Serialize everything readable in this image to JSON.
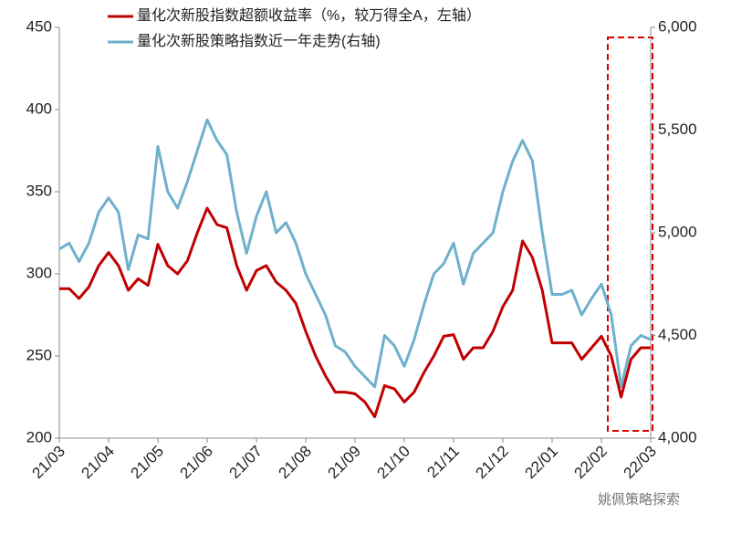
{
  "chart_data": {
    "type": "line",
    "categories": [
      "21/03",
      null,
      null,
      null,
      null,
      "21/04",
      null,
      null,
      null,
      null,
      "21/05",
      null,
      null,
      null,
      null,
      "21/06",
      null,
      null,
      null,
      null,
      "21/07",
      null,
      null,
      null,
      null,
      "21/08",
      null,
      null,
      null,
      null,
      "21/09",
      null,
      null,
      null,
      null,
      "21/10",
      null,
      null,
      null,
      null,
      "21/11",
      null,
      null,
      null,
      null,
      "21/12",
      null,
      null,
      null,
      null,
      "22/01",
      null,
      null,
      null,
      null,
      "22/02",
      null,
      null,
      null,
      null,
      "22/03"
    ],
    "series": [
      {
        "name": "量化次新股指数超额收益率（%，较万得全A，左轴）",
        "color": "#c00000",
        "values": [
          291,
          291,
          285,
          292,
          305,
          313,
          305,
          290,
          297,
          293,
          318,
          305,
          300,
          308,
          325,
          340,
          330,
          328,
          305,
          290,
          302,
          305,
          295,
          290,
          282,
          265,
          250,
          238,
          228,
          228,
          227,
          222,
          213,
          232,
          230,
          222,
          228,
          240,
          250,
          262,
          263,
          248,
          255,
          255,
          265,
          280,
          290,
          320,
          310,
          290,
          258,
          258,
          258,
          248,
          255,
          262,
          250,
          225,
          248,
          255,
          255
        ]
      },
      {
        "name": "量化次新股策略指数近一年走势(右轴)",
        "color": "#6fb0cc",
        "axis": "y2",
        "values": [
          4920,
          4950,
          4860,
          4950,
          5100,
          5170,
          5100,
          4820,
          4990,
          4970,
          5420,
          5200,
          5120,
          5250,
          5400,
          5550,
          5450,
          5380,
          5100,
          4900,
          5080,
          5200,
          5000,
          5050,
          4950,
          4800,
          4700,
          4600,
          4450,
          4420,
          4350,
          4300,
          4250,
          4500,
          4450,
          4350,
          4480,
          4650,
          4800,
          4850,
          4950,
          4750,
          4900,
          4950,
          5000,
          5200,
          5350,
          5450,
          5350,
          5000,
          4700,
          4700,
          4720,
          4600,
          4680,
          4750,
          4600,
          4250,
          4450,
          4500,
          4480
        ]
      }
    ],
    "ylim": [
      200,
      450
    ],
    "yticks": [
      200,
      250,
      300,
      350,
      400,
      450
    ],
    "y2lim": [
      4000,
      6000
    ],
    "y2ticks": [
      {
        "value": 4000,
        "label": "4,000"
      },
      {
        "value": 4500,
        "label": "4,500"
      },
      {
        "value": 5000,
        "label": "5,000"
      },
      {
        "value": 5500,
        "label": "5,500"
      },
      {
        "value": 6000,
        "label": "6,000"
      }
    ],
    "watermark": "姚佩策略探索"
  }
}
